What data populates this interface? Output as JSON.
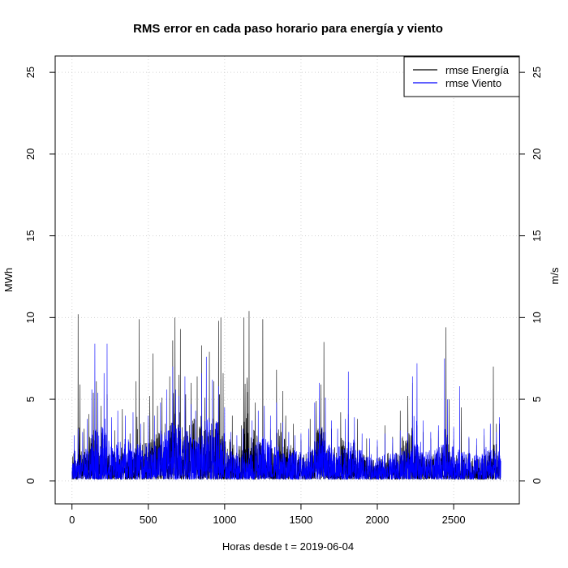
{
  "chart_data": {
    "type": "line",
    "title": "RMS error en cada paso horario para energía y viento",
    "xlabel": "Horas desde t = 2019-06-04",
    "ylabel_left": "MWh",
    "ylabel_right": "m/s",
    "xlim": [
      -110,
      2930
    ],
    "ylim": [
      -1.4,
      26
    ],
    "xticks": [
      0,
      500,
      1000,
      1500,
      2000,
      2500
    ],
    "yticks": [
      0,
      5,
      10,
      15,
      20,
      25
    ],
    "grid": true,
    "legend_position": "top-right",
    "n_hours": 2810,
    "series": [
      {
        "name": "rmse Energía",
        "color": "#000000",
        "peaks": [
          [
            15,
            1.9
          ],
          [
            40,
            10.2
          ],
          [
            52,
            5.9
          ],
          [
            80,
            3.2
          ],
          [
            110,
            4.1
          ],
          [
            140,
            5.4
          ],
          [
            160,
            6.1
          ],
          [
            190,
            4.6
          ],
          [
            230,
            5.3
          ],
          [
            280,
            3.1
          ],
          [
            330,
            4.4
          ],
          [
            380,
            2.9
          ],
          [
            420,
            6.1
          ],
          [
            440,
            9.9
          ],
          [
            470,
            3.6
          ],
          [
            510,
            5.2
          ],
          [
            530,
            7.8
          ],
          [
            560,
            4.6
          ],
          [
            590,
            5.1
          ],
          [
            610,
            3.5
          ],
          [
            640,
            6.4
          ],
          [
            660,
            8.6
          ],
          [
            675,
            10.0
          ],
          [
            700,
            6.5
          ],
          [
            710,
            9.3
          ],
          [
            745,
            5.3
          ],
          [
            780,
            6.0
          ],
          [
            820,
            6.4
          ],
          [
            850,
            8.3
          ],
          [
            870,
            5.1
          ],
          [
            900,
            7.9
          ],
          [
            930,
            6.1
          ],
          [
            960,
            9.8
          ],
          [
            975,
            10.0
          ],
          [
            990,
            6.6
          ],
          [
            1050,
            4.0
          ],
          [
            1110,
            3.4
          ],
          [
            1125,
            10.0
          ],
          [
            1160,
            10.4
          ],
          [
            1200,
            4.8
          ],
          [
            1250,
            9.9
          ],
          [
            1300,
            3.2
          ],
          [
            1340,
            6.8
          ],
          [
            1380,
            5.5
          ],
          [
            1400,
            4.0
          ],
          [
            1450,
            3.5
          ],
          [
            1500,
            2.5
          ],
          [
            1560,
            3.8
          ],
          [
            1600,
            4.9
          ],
          [
            1630,
            5.9
          ],
          [
            1650,
            8.5
          ],
          [
            1700,
            3.2
          ],
          [
            1760,
            4.2
          ],
          [
            1810,
            4.1
          ],
          [
            1870,
            3.8
          ],
          [
            1930,
            2.6
          ],
          [
            2000,
            2.1
          ],
          [
            2050,
            3.4
          ],
          [
            2100,
            2.7
          ],
          [
            2150,
            4.3
          ],
          [
            2200,
            5.2
          ],
          [
            2230,
            6.0
          ],
          [
            2260,
            3.4
          ],
          [
            2300,
            3.0
          ],
          [
            2350,
            2.6
          ],
          [
            2400,
            3.1
          ],
          [
            2450,
            9.4
          ],
          [
            2470,
            5.0
          ],
          [
            2500,
            2.5
          ],
          [
            2550,
            4.5
          ],
          [
            2600,
            2.6
          ],
          [
            2650,
            2.2
          ],
          [
            2700,
            2.8
          ],
          [
            2760,
            7.0
          ],
          [
            2780,
            3.5
          ],
          [
            2800,
            3.5
          ]
        ]
      },
      {
        "name": "rmse Viento",
        "color": "#0000ff",
        "peaks": [
          [
            15,
            2.8
          ],
          [
            40,
            3.2
          ],
          [
            70,
            3.0
          ],
          [
            100,
            3.8
          ],
          [
            130,
            5.6
          ],
          [
            150,
            8.4
          ],
          [
            170,
            5.4
          ],
          [
            210,
            6.6
          ],
          [
            230,
            8.4
          ],
          [
            260,
            3.9
          ],
          [
            300,
            4.3
          ],
          [
            350,
            4.0
          ],
          [
            400,
            4.2
          ],
          [
            450,
            3.5
          ],
          [
            500,
            4.0
          ],
          [
            540,
            4.0
          ],
          [
            580,
            4.8
          ],
          [
            620,
            5.6
          ],
          [
            660,
            7.0
          ],
          [
            680,
            5.6
          ],
          [
            700,
            5.2
          ],
          [
            740,
            6.4
          ],
          [
            780,
            4.7
          ],
          [
            810,
            4.3
          ],
          [
            850,
            6.6
          ],
          [
            880,
            7.6
          ],
          [
            920,
            6.2
          ],
          [
            960,
            5.8
          ],
          [
            1000,
            4.5
          ],
          [
            1040,
            3.0
          ],
          [
            1080,
            2.8
          ],
          [
            1120,
            3.2
          ],
          [
            1180,
            3.7
          ],
          [
            1220,
            4.3
          ],
          [
            1260,
            4.6
          ],
          [
            1300,
            4.0
          ],
          [
            1340,
            4.8
          ],
          [
            1380,
            3.6
          ],
          [
            1420,
            3.0
          ],
          [
            1460,
            2.8
          ],
          [
            1500,
            2.9
          ],
          [
            1550,
            3.2
          ],
          [
            1590,
            4.8
          ],
          [
            1620,
            6.0
          ],
          [
            1660,
            5.1
          ],
          [
            1700,
            3.7
          ],
          [
            1740,
            3.2
          ],
          [
            1790,
            3.8
          ],
          [
            1810,
            6.7
          ],
          [
            1850,
            3.9
          ],
          [
            1900,
            2.9
          ],
          [
            1950,
            2.6
          ],
          [
            2000,
            2.5
          ],
          [
            2050,
            2.9
          ],
          [
            2100,
            2.6
          ],
          [
            2150,
            3.1
          ],
          [
            2200,
            3.0
          ],
          [
            2230,
            6.4
          ],
          [
            2260,
            7.2
          ],
          [
            2300,
            3.7
          ],
          [
            2350,
            3.0
          ],
          [
            2400,
            3.4
          ],
          [
            2440,
            7.5
          ],
          [
            2460,
            5.0
          ],
          [
            2500,
            3.3
          ],
          [
            2540,
            5.8
          ],
          [
            2600,
            2.7
          ],
          [
            2650,
            2.6
          ],
          [
            2700,
            3.2
          ],
          [
            2740,
            3.5
          ],
          [
            2780,
            3.0
          ],
          [
            2800,
            3.9
          ]
        ]
      }
    ]
  }
}
